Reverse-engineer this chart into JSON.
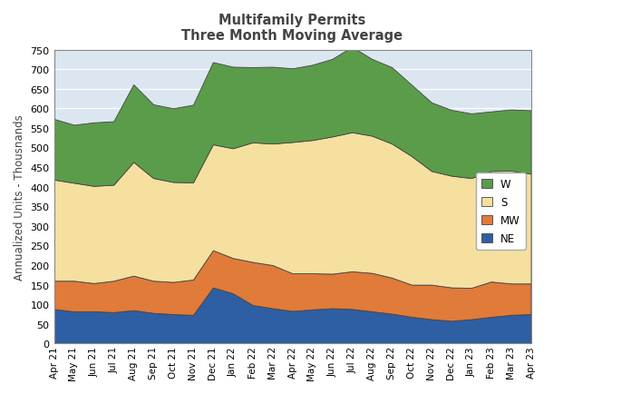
{
  "title": "Multifamily Permits\nThree Month Moving Average",
  "ylabel": "Annualized Units - Thousnands",
  "ylim": [
    0,
    750
  ],
  "labels": [
    "Apr 21",
    "May 21",
    "Jun 21",
    "Jul 21",
    "Aug 21",
    "Sep 21",
    "Oct 21",
    "Nov 21",
    "Dec 21",
    "Jan 22",
    "Feb 22",
    "Mar 22",
    "Apr 22",
    "May 22",
    "Jun 22",
    "Jul 22",
    "Aug 22",
    "Sep 22",
    "Oct 22",
    "Nov 22",
    "Dec 22",
    "Jan 23",
    "Feb 23",
    "Mar 23",
    "Apr 23"
  ],
  "NE": [
    88,
    82,
    82,
    80,
    85,
    78,
    75,
    73,
    143,
    128,
    98,
    90,
    83,
    87,
    90,
    88,
    82,
    76,
    68,
    62,
    58,
    62,
    68,
    73,
    75
  ],
  "MW": [
    72,
    78,
    72,
    80,
    88,
    82,
    82,
    90,
    95,
    90,
    110,
    110,
    96,
    92,
    88,
    96,
    98,
    92,
    82,
    88,
    85,
    80,
    90,
    80,
    78
  ],
  "S": [
    258,
    250,
    248,
    245,
    290,
    262,
    255,
    248,
    270,
    280,
    305,
    310,
    335,
    340,
    350,
    355,
    350,
    342,
    328,
    290,
    285,
    280,
    282,
    288,
    280
  ],
  "W": [
    155,
    148,
    162,
    162,
    198,
    188,
    188,
    198,
    210,
    208,
    192,
    196,
    188,
    192,
    198,
    218,
    196,
    195,
    182,
    175,
    168,
    165,
    152,
    156,
    162
  ],
  "colors": {
    "NE": "#2e5fa3",
    "MW": "#e07b39",
    "S": "#f5e0a0",
    "W": "#5a9c4a"
  },
  "background_color": "#ffffff",
  "plot_bg_color": "#dce6f1"
}
